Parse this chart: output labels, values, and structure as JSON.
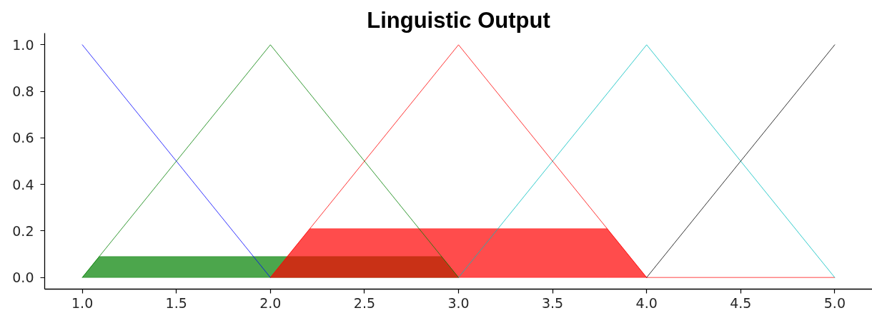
{
  "chart_data": {
    "type": "line",
    "title": "Linguistic Output",
    "xlim": [
      0.8,
      5.2
    ],
    "ylim": [
      -0.05,
      1.05
    ],
    "xticks": [
      {
        "value": 1,
        "label": "1.0"
      },
      1.5,
      {
        "value": 2,
        "label": "2.0"
      },
      2.5,
      {
        "value": 3,
        "label": "3.0"
      },
      3.5,
      {
        "value": 4,
        "label": "4.0"
      },
      4.5,
      {
        "value": 5,
        "label": "5.0"
      }
    ],
    "yticks": [
      {
        "value": 0,
        "label": "0.0"
      },
      0.2,
      0.4,
      0.6,
      0.8,
      {
        "value": 1,
        "label": "1.0"
      }
    ],
    "series": [
      {
        "type": "area",
        "color": "#4ca64c",
        "x": [
          1,
          1.09,
          2.91,
          3
        ],
        "values": [
          0,
          0.09,
          0.09,
          0
        ]
      },
      {
        "type": "area",
        "color": "#ff4c4c",
        "x": [
          2,
          2.21,
          3.79,
          4,
          5
        ],
        "values": [
          0,
          0.21,
          0.21,
          0,
          0
        ]
      },
      {
        "color": "#0000ff",
        "x": [
          1,
          2
        ],
        "values": [
          1,
          0
        ]
      },
      {
        "color": "#008000",
        "x": [
          1,
          2,
          3
        ],
        "values": [
          0,
          1,
          0
        ]
      },
      {
        "color": "#ff0000",
        "x": [
          2,
          3,
          4
        ],
        "values": [
          0,
          1,
          0
        ]
      },
      {
        "color": "#00bfbf",
        "x": [
          3,
          4,
          5
        ],
        "values": [
          0,
          1,
          0
        ]
      },
      {
        "color": "#000000",
        "x": [
          4,
          5
        ],
        "values": [
          0,
          1
        ]
      }
    ]
  }
}
